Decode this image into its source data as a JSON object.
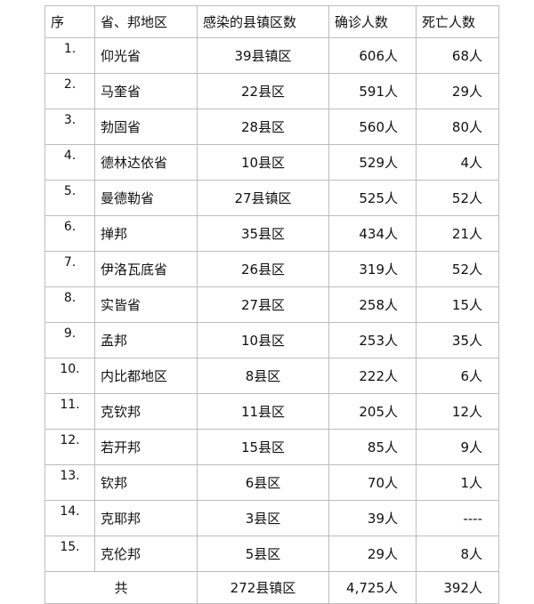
{
  "headers": [
    "序",
    "省、邦地区",
    "感染的县镇区数",
    "确诊人数",
    "死亡人数"
  ],
  "rows": [
    {
      "no": "1.",
      "region": "仰光省",
      "districts": "39县镇区",
      "confirmed": "606人",
      "deaths": "68人"
    },
    {
      "no": "2.",
      "region": "马奎省",
      "districts": "22县区",
      "confirmed": "591人",
      "deaths": "29人"
    },
    {
      "no": "3.",
      "region": "勃固省",
      "districts": "28县区",
      "confirmed": "560人",
      "deaths": "80人"
    },
    {
      "no": "4.",
      "region": "德林达依省",
      "districts": "10县区",
      "confirmed": "529人",
      "deaths": "4人"
    },
    {
      "no": "5.",
      "region": "曼德勒省",
      "districts": "27县镇区",
      "confirmed": "525人",
      "deaths": "52人"
    },
    {
      "no": "6.",
      "region": "掸邦",
      "districts": "35县区",
      "confirmed": "434人",
      "deaths": "21人"
    },
    {
      "no": "7.",
      "region": "伊洛瓦底省",
      "districts": "26县区",
      "confirmed": "319人",
      "deaths": "52人"
    },
    {
      "no": "8.",
      "region": "实皆省",
      "districts": "27县区",
      "confirmed": "258人",
      "deaths": "15人"
    },
    {
      "no": "9.",
      "region": "孟邦",
      "districts": "10县区",
      "confirmed": "253人",
      "deaths": "35人"
    },
    {
      "no": "10.",
      "region": "内比都地区",
      "districts": "8县区",
      "confirmed": "222人",
      "deaths": "6人"
    },
    {
      "no": "11.",
      "region": "克钦邦",
      "districts": "11县区",
      "confirmed": "205人",
      "deaths": "12人"
    },
    {
      "no": "12.",
      "region": "若开邦",
      "districts": "15县区",
      "confirmed": "85人",
      "deaths": "9人"
    },
    {
      "no": "13.",
      "region": "钦邦",
      "districts": "6县区",
      "confirmed": "70人",
      "deaths": "1人"
    },
    {
      "no": "14.",
      "region": "克耶邦",
      "districts": "3县区",
      "confirmed": "39人",
      "deaths": "----"
    },
    {
      "no": "15.",
      "region": "克伦邦",
      "districts": "5县区",
      "confirmed": "29人",
      "deaths": "8人"
    }
  ],
  "total": {
    "label": "共",
    "districts": "272县镇区",
    "confirmed": "4,725人",
    "deaths": "392人"
  }
}
